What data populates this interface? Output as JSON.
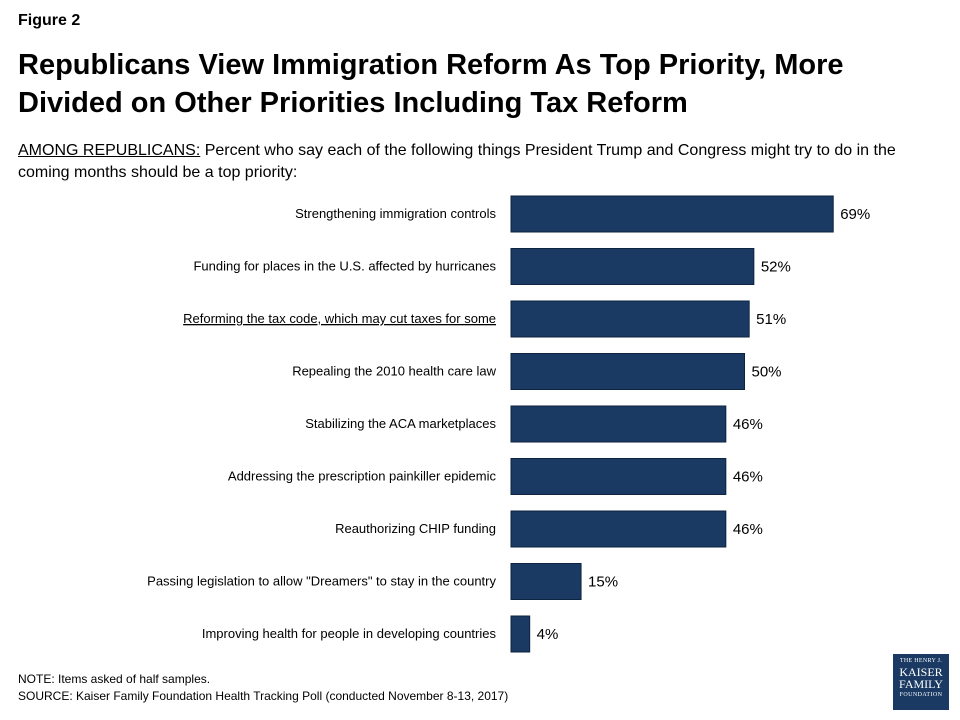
{
  "figure_label": "Figure 2",
  "title": "Republicans View Immigration Reform As Top Priority, More Divided on Other Priorities Including Tax Reform",
  "subtitle": {
    "lead": "AMONG REPUBLICANS:",
    "text": " Percent who say each of the following things President Trump and Congress might try to do in the coming months should be a top priority:"
  },
  "colors": {
    "bar": "#1a3a63"
  },
  "chart_data": {
    "type": "bar",
    "orientation": "horizontal",
    "categories": [
      "Strengthening immigration controls",
      "Funding for places in the U.S. affected by hurricanes",
      "Reforming the tax code, which may cut taxes for some",
      "Repealing the 2010 health care law",
      "Stabilizing the ACA marketplaces",
      "Addressing the prescription painkiller epidemic",
      "Reauthorizing CHIP funding",
      "Passing legislation to allow \"Dreamers\" to stay in the country",
      "Improving health for people in developing countries"
    ],
    "values": [
      69,
      52,
      51,
      50,
      46,
      46,
      46,
      15,
      4
    ],
    "value_labels": [
      "69%",
      "52%",
      "51%",
      "50%",
      "46%",
      "46%",
      "46%",
      "15%",
      "4%"
    ],
    "underlined_category_index": 2,
    "xlim": [
      0,
      100
    ]
  },
  "note": "NOTE: Items asked of half samples.",
  "source": "SOURCE: Kaiser Family Foundation Health Tracking Poll (conducted November 8-13, 2017)",
  "logo": {
    "line1": "THE HENRY J.",
    "line2": "KAISER",
    "line3": "FAMILY",
    "line4": "FOUNDATION"
  }
}
